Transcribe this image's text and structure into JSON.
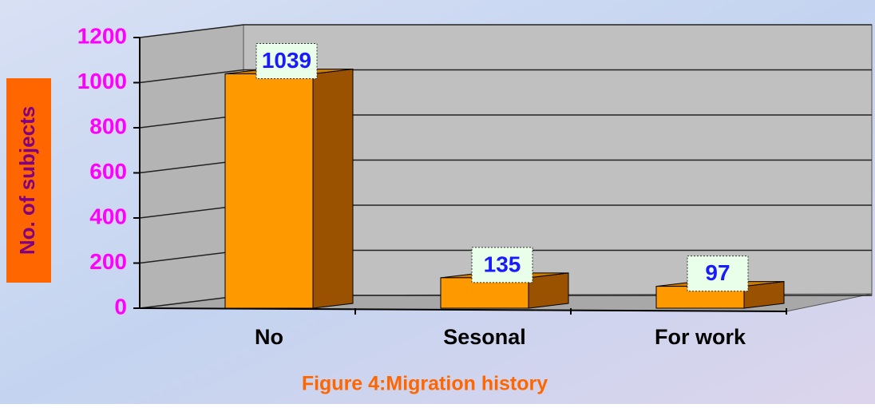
{
  "chart_data": {
    "type": "bar",
    "title": "Figure 4:Migration history",
    "y_label": "No. of subjects",
    "categories": [
      "No",
      "Sesonal",
      "For work"
    ],
    "values": [
      1039,
      135,
      97
    ],
    "color": "#ff9900",
    "ylim": [
      0,
      1200
    ],
    "yticks": [
      0,
      200,
      400,
      600,
      800,
      1000,
      1200
    ],
    "grid": true
  }
}
